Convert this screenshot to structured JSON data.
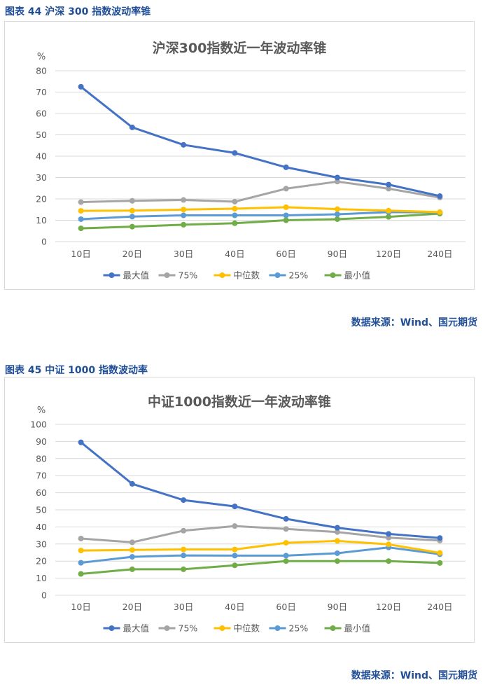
{
  "figures": [
    {
      "caption": "图表 44 沪深 300 指数波动率锥",
      "source": "数据来源：Wind、国元期货"
    },
    {
      "caption": "图表 45 中证 1000 指数波动率",
      "source": "数据来源：Wind、国元期货"
    }
  ],
  "chart_data": [
    {
      "type": "line",
      "title": "沪深300指数近一年波动率锥",
      "unit_label": "%",
      "categories": [
        "10日",
        "20日",
        "30日",
        "40日",
        "60日",
        "90日",
        "120日",
        "240日"
      ],
      "ylim": [
        0,
        80
      ],
      "yticks": [
        0,
        10,
        20,
        30,
        40,
        50,
        60,
        70,
        80
      ],
      "grid": true,
      "legend": "bottom",
      "series": [
        {
          "name": "最大值",
          "color": "#4472c4",
          "values": [
            72.5,
            53.5,
            45.3,
            41.5,
            34.8,
            30.0,
            26.7,
            21.3
          ]
        },
        {
          "name": "75%",
          "color": "#a5a5a5",
          "values": [
            18.5,
            19.1,
            19.5,
            18.7,
            24.8,
            28.1,
            24.8,
            20.6
          ]
        },
        {
          "name": "中位数",
          "color": "#ffc000",
          "values": [
            14.4,
            14.5,
            15.0,
            15.4,
            16.1,
            15.2,
            14.5,
            13.8
          ]
        },
        {
          "name": "25%",
          "color": "#5b9bd5",
          "values": [
            10.5,
            11.7,
            12.3,
            12.3,
            12.3,
            12.8,
            13.8,
            13.7
          ]
        },
        {
          "name": "最小值",
          "color": "#70ad47",
          "values": [
            6.2,
            7.0,
            7.9,
            8.6,
            10.0,
            10.5,
            11.6,
            13.1
          ]
        }
      ]
    },
    {
      "type": "line",
      "title": "中证1000指数近一年波动率锥",
      "unit_label": "%",
      "categories": [
        "10日",
        "20日",
        "30日",
        "40日",
        "60日",
        "90日",
        "120日",
        "240日"
      ],
      "ylim": [
        0,
        100
      ],
      "yticks": [
        0,
        10,
        20,
        30,
        40,
        50,
        60,
        70,
        80,
        90,
        100
      ],
      "grid": true,
      "legend": "bottom",
      "series": [
        {
          "name": "最大值",
          "color": "#4472c4",
          "values": [
            89.5,
            65.2,
            55.7,
            52.0,
            44.7,
            39.5,
            35.9,
            33.5
          ]
        },
        {
          "name": "75%",
          "color": "#a5a5a5",
          "values": [
            33.2,
            31.0,
            37.8,
            40.5,
            38.8,
            37.0,
            33.7,
            32.0
          ]
        },
        {
          "name": "中位数",
          "color": "#ffc000",
          "values": [
            26.2,
            26.5,
            26.8,
            26.8,
            30.7,
            31.8,
            29.8,
            24.8
          ]
        },
        {
          "name": "25%",
          "color": "#5b9bd5",
          "values": [
            19.0,
            22.5,
            23.3,
            23.2,
            23.2,
            24.6,
            28.0,
            24.0
          ]
        },
        {
          "name": "最小值",
          "color": "#70ad47",
          "values": [
            12.5,
            15.2,
            15.2,
            17.5,
            20.0,
            20.0,
            20.0,
            18.9
          ]
        }
      ]
    }
  ]
}
